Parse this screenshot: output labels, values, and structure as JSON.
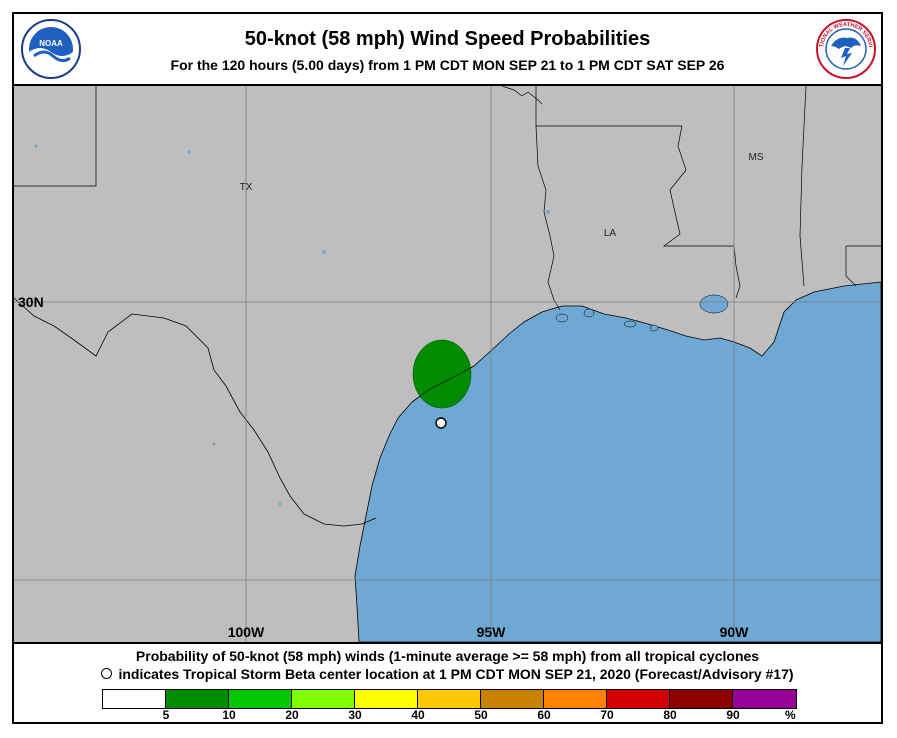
{
  "header": {
    "title": "50-knot (58 mph) Wind Speed Probabilities",
    "subtitle": "For the 120 hours (5.00 days) from 1 PM CDT MON SEP 21 to 1 PM CDT SAT SEP 26",
    "left_logo_text": "NOAA",
    "right_logo_text": "NATIONAL WEATHER SERVICE"
  },
  "map": {
    "state_labels": [
      "TX",
      "LA",
      "MS"
    ],
    "lat_labels": [
      "30N"
    ],
    "lon_labels": [
      "100W",
      "95W",
      "90W"
    ],
    "colors": {
      "land": "#bebebe",
      "water": "#6fa8d2",
      "probability_5_10": "#008c00",
      "grid": "#7f7f7f",
      "border": "#000000"
    },
    "storm_marker": "open-circle-icon"
  },
  "footer": {
    "line1": "Probability of 50-knot (58 mph) winds (1-minute average >= 58 mph) from all tropical cyclones",
    "line2": "indicates Tropical Storm Beta center location at 1 PM CDT MON SEP 21, 2020 (Forecast/Advisory #17)"
  },
  "legend": {
    "colors": [
      "#ffffff",
      "#008c00",
      "#00c800",
      "#80ff00",
      "#ffff00",
      "#ffc800",
      "#c88200",
      "#ff8200",
      "#d20000",
      "#8c0000",
      "#960096"
    ],
    "ticks": [
      "5",
      "10",
      "20",
      "30",
      "40",
      "50",
      "60",
      "70",
      "80",
      "90"
    ],
    "unit": "%"
  }
}
